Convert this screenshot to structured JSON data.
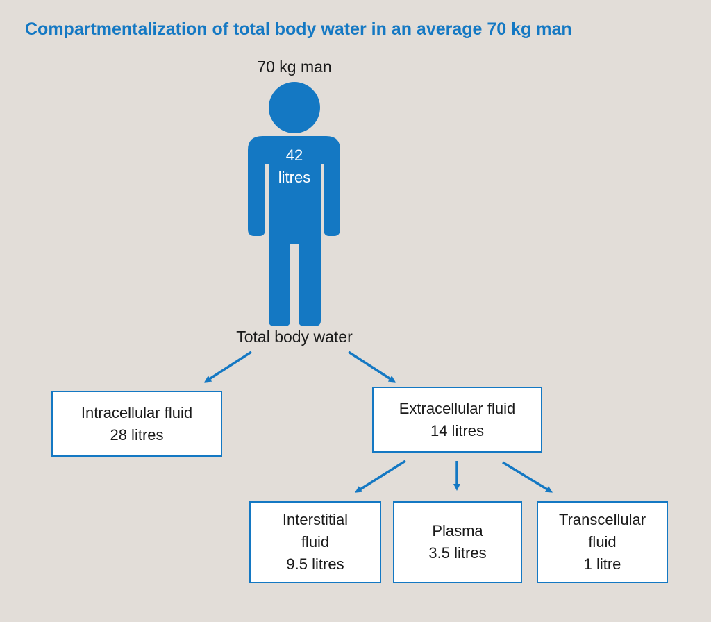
{
  "title": "Compartmentalization of total body water in an average 70 kg man",
  "man_label": "70 kg man",
  "body_water": {
    "value": "42",
    "unit": "litres"
  },
  "total_label": "Total body water",
  "compartments": {
    "intracellular": {
      "name": "Intracellular fluid",
      "volume": "28 litres"
    },
    "extracellular": {
      "name": "Extracellular fluid",
      "volume": "14 litres"
    },
    "interstitial": {
      "name_line1": "Interstitial",
      "name_line2": "fluid",
      "volume": "9.5 litres"
    },
    "plasma": {
      "name": "Plasma",
      "volume": "3.5 litres"
    },
    "transcellular": {
      "name_line1": "Transcellular",
      "name_line2": "fluid",
      "volume": "1 litre"
    }
  },
  "colors": {
    "background": "#e2ddd8",
    "accent": "#1478c3",
    "box_fill": "#ffffff",
    "text": "#1a1a1a"
  },
  "icons": {
    "figure": "person-silhouette-icon",
    "arrow": "arrow-icon"
  }
}
